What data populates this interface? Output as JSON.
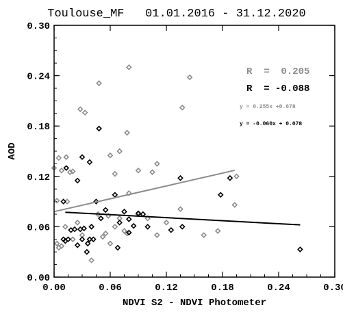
{
  "chart_data": {
    "type": "scatter",
    "title": "Toulouse_MF   01.01.2016 - 31.12.2020",
    "xlabel": "NDVI S2 - NDVI Photometer",
    "ylabel": "AOD",
    "xlim": [
      0.0,
      0.3
    ],
    "ylim": [
      0.0,
      0.3
    ],
    "xticks": [
      "0.00",
      "0.06",
      "0.12",
      "0.18",
      "0.24",
      "0.30"
    ],
    "yticks": [
      "0.00",
      "0.06",
      "0.12",
      "0.18",
      "0.24",
      "0.30"
    ],
    "grid": false,
    "colors": {
      "gray": "#8c8c8c",
      "black": "#000000"
    },
    "annotations": {
      "r_gray": "R  =  0.205",
      "r_black": "R  = -0.088",
      "eq_gray": "y = 0.255x +0.078",
      "eq_black": "y = -0.060x + 0.078"
    },
    "series": [
      {
        "color": "#8c8c8c",
        "marker": "diamond-open",
        "x": [
          0.08,
          0.145,
          0.048,
          0.137,
          0.028,
          0.033,
          0.078,
          0.07,
          0.06,
          0.0,
          0.013,
          0.005,
          0.11,
          0.008,
          0.017,
          0.02,
          0.09,
          0.105,
          0.065,
          0.08,
          0.003,
          0.014,
          0.195,
          0.193,
          0.135,
          0.09,
          0.1,
          0.12,
          0.047,
          0.058,
          0.07,
          0.04,
          0.025,
          0.03,
          0.065,
          0.075,
          0.052,
          0.11,
          0.005,
          0.008,
          0.003,
          0.02,
          0.012,
          0.055,
          0.16,
          0.06,
          0.175,
          0.04,
          0.078
        ],
        "y": [
          0.25,
          0.238,
          0.231,
          0.202,
          0.2,
          0.196,
          0.172,
          0.15,
          0.145,
          0.13,
          0.143,
          0.142,
          0.135,
          0.127,
          0.125,
          0.126,
          0.127,
          0.125,
          0.123,
          0.1,
          0.091,
          0.09,
          0.12,
          0.086,
          0.081,
          0.075,
          0.07,
          0.065,
          0.075,
          0.073,
          0.07,
          0.06,
          0.065,
          0.05,
          0.06,
          0.055,
          0.048,
          0.05,
          0.035,
          0.037,
          0.04,
          0.045,
          0.06,
          0.052,
          0.05,
          0.04,
          0.055,
          0.02,
          0.052
        ]
      },
      {
        "color": "#000000",
        "marker": "diamond-open",
        "x": [
          0.048,
          0.03,
          0.038,
          0.013,
          0.025,
          0.01,
          0.188,
          0.135,
          0.065,
          0.045,
          0.055,
          0.075,
          0.08,
          0.085,
          0.09,
          0.095,
          0.07,
          0.05,
          0.04,
          0.032,
          0.028,
          0.022,
          0.018,
          0.015,
          0.012,
          0.01,
          0.036,
          0.1,
          0.125,
          0.137,
          0.178,
          0.038,
          0.03,
          0.035,
          0.263,
          0.068,
          0.08,
          0.025,
          0.042
        ],
        "y": [
          0.177,
          0.143,
          0.137,
          0.13,
          0.115,
          0.09,
          0.118,
          0.118,
          0.098,
          0.09,
          0.08,
          0.078,
          0.069,
          0.061,
          0.076,
          0.075,
          0.065,
          0.07,
          0.06,
          0.058,
          0.057,
          0.057,
          0.056,
          0.045,
          0.043,
          0.045,
          0.04,
          0.06,
          0.056,
          0.06,
          0.098,
          0.045,
          0.045,
          0.03,
          0.033,
          0.035,
          0.053,
          0.038,
          0.045
        ]
      }
    ],
    "regression": [
      {
        "color": "#8c8c8c",
        "slope": 0.255,
        "intercept": 0.078,
        "x_range": [
          0.0,
          0.193
        ]
      },
      {
        "color": "#000000",
        "slope": -0.06,
        "intercept": 0.078,
        "x_range": [
          0.012,
          0.263
        ]
      }
    ]
  }
}
